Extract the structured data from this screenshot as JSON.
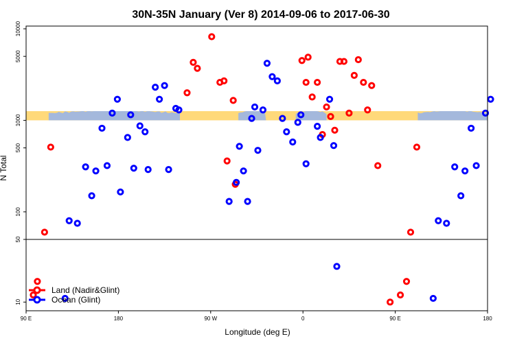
{
  "chart_data": {
    "type": "scatter",
    "title": "30N-35N January (Ver 8)   2014-09-06 to 2017-06-30",
    "xlabel": "Longitude (deg E)",
    "ylabel": "N Total",
    "x_ticks": [
      {
        "value": 90,
        "label": "90 E"
      },
      {
        "value": 180,
        "label": "180"
      },
      {
        "value": 270,
        "label": "90 W"
      },
      {
        "value": 360,
        "label": "0"
      },
      {
        "value": 450,
        "label": "90 E"
      },
      {
        "value": 540,
        "label": "180"
      }
    ],
    "xlim": [
      90,
      540
    ],
    "y_scale": "log, split axis (lower panel 8–50, upper panel 50–10000)",
    "y_ticks_upper": [
      {
        "value": 50,
        "label": "50"
      },
      {
        "value": 100,
        "label": "100"
      },
      {
        "value": 500,
        "label": "500"
      },
      {
        "value": 1000,
        "label": "1000"
      },
      {
        "value": 5000,
        "label": "5000"
      },
      {
        "value": 10000,
        "label": "10000"
      }
    ],
    "y_ticks_lower": [
      {
        "value": 10,
        "label": "10"
      }
    ],
    "land_band": {
      "value_min": 1000,
      "value_max": 1260,
      "land_color": "#ffd97a",
      "ocean_color": "#a4b8dc"
    },
    "grid": false,
    "legend_position": "bottom-left",
    "series": [
      {
        "name": "Land (Nadir&Glint)",
        "color": "#ff0000",
        "points": [
          [
            97,
            12
          ],
          [
            101,
            17
          ],
          [
            108,
            60
          ],
          [
            114,
            510
          ],
          [
            247,
            2000
          ],
          [
            253,
            4300
          ],
          [
            257,
            3700
          ],
          [
            271,
            8200
          ],
          [
            279,
            2600
          ],
          [
            283,
            2700
          ],
          [
            286,
            360
          ],
          [
            292,
            1650
          ],
          [
            294,
            200
          ],
          [
            359,
            4500
          ],
          [
            363,
            2600
          ],
          [
            365,
            4900
          ],
          [
            369,
            1800
          ],
          [
            374,
            2600
          ],
          [
            379,
            700
          ],
          [
            383,
            1400
          ],
          [
            387,
            1100
          ],
          [
            391,
            780
          ],
          [
            396,
            4400
          ],
          [
            400,
            4400
          ],
          [
            405,
            1200
          ],
          [
            410,
            3100
          ],
          [
            414,
            4600
          ],
          [
            419,
            2600
          ],
          [
            423,
            1300
          ],
          [
            427,
            2400
          ],
          [
            433,
            320
          ],
          [
            445,
            10
          ],
          [
            455,
            12
          ],
          [
            461,
            17
          ],
          [
            465,
            60
          ],
          [
            471,
            510
          ]
        ]
      },
      {
        "name": "Ocean (Glint)",
        "color": "#0000ff",
        "points": [
          [
            128,
            11
          ],
          [
            132,
            80
          ],
          [
            140,
            75
          ],
          [
            148,
            310
          ],
          [
            154,
            150
          ],
          [
            158,
            280
          ],
          [
            164,
            820
          ],
          [
            169,
            320
          ],
          [
            174,
            1200
          ],
          [
            179,
            1700
          ],
          [
            182,
            165
          ],
          [
            189,
            650
          ],
          [
            192,
            1150
          ],
          [
            195,
            300
          ],
          [
            201,
            870
          ],
          [
            206,
            750
          ],
          [
            209,
            290
          ],
          [
            216,
            2300
          ],
          [
            220,
            1700
          ],
          [
            225,
            2400
          ],
          [
            229,
            290
          ],
          [
            236,
            1350
          ],
          [
            239,
            1300
          ],
          [
            288,
            130
          ],
          [
            295,
            210
          ],
          [
            298,
            520
          ],
          [
            302,
            280
          ],
          [
            306,
            130
          ],
          [
            310,
            1050
          ],
          [
            313,
            1400
          ],
          [
            316,
            470
          ],
          [
            321,
            1300
          ],
          [
            325,
            4200
          ],
          [
            330,
            3000
          ],
          [
            335,
            2700
          ],
          [
            340,
            1050
          ],
          [
            344,
            750
          ],
          [
            350,
            580
          ],
          [
            355,
            950
          ],
          [
            358,
            1150
          ],
          [
            363,
            335
          ],
          [
            374,
            860
          ],
          [
            377,
            650
          ],
          [
            386,
            1700
          ],
          [
            390,
            530
          ],
          [
            393,
            25
          ],
          [
            487,
            11
          ],
          [
            492,
            80
          ],
          [
            500,
            75
          ],
          [
            508,
            310
          ],
          [
            514,
            150
          ],
          [
            518,
            280
          ],
          [
            524,
            820
          ],
          [
            529,
            320
          ],
          [
            538,
            1200
          ],
          [
            543,
            1700
          ]
        ]
      }
    ]
  }
}
